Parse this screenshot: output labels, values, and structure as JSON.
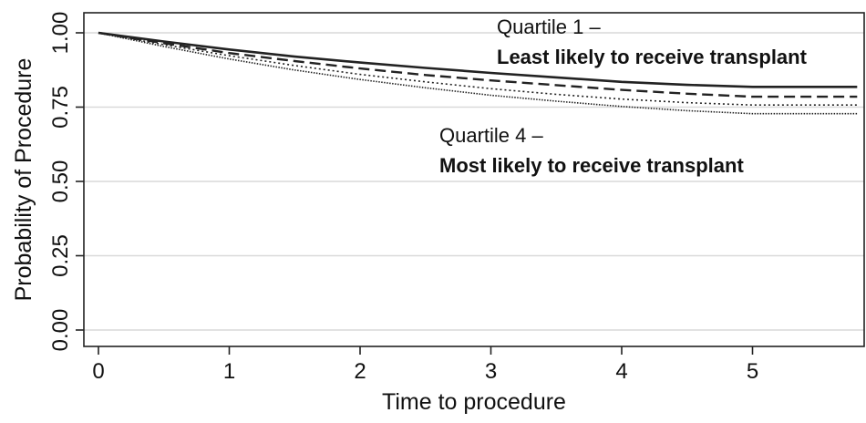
{
  "chart_data": {
    "type": "line",
    "title": "",
    "xlabel": "Time to procedure",
    "ylabel": "Probability of Procedure",
    "xlim": [
      0,
      5.85
    ],
    "ylim": [
      0,
      1.05
    ],
    "xticks": [
      0,
      1,
      2,
      3,
      4,
      5
    ],
    "xtick_labels": [
      "0",
      "1",
      "2",
      "3",
      "4",
      "5"
    ],
    "yticks": [
      0,
      0.25,
      0.5,
      0.75,
      1
    ],
    "ytick_labels": [
      "0.00",
      "0.25",
      "0.50",
      "0.75",
      "1.00"
    ],
    "grid": true,
    "series": [
      {
        "style": "solid",
        "x": [
          0,
          0.5,
          1,
          1.5,
          2,
          2.5,
          3,
          3.5,
          4,
          4.5,
          5,
          5.8
        ],
        "values": [
          1.0,
          0.971,
          0.944,
          0.92,
          0.9,
          0.882,
          0.865,
          0.85,
          0.835,
          0.825,
          0.818,
          0.818
        ]
      },
      {
        "style": "dashed",
        "x": [
          0,
          0.5,
          1,
          1.5,
          2,
          2.5,
          3,
          3.5,
          4,
          4.5,
          5,
          5.8
        ],
        "values": [
          1.0,
          0.965,
          0.932,
          0.905,
          0.88,
          0.858,
          0.84,
          0.824,
          0.808,
          0.795,
          0.785,
          0.785
        ]
      },
      {
        "style": "dotted",
        "x": [
          0,
          0.5,
          1,
          1.5,
          2,
          2.5,
          3,
          3.5,
          4,
          4.5,
          5,
          5.8
        ],
        "values": [
          1.0,
          0.96,
          0.923,
          0.89,
          0.86,
          0.835,
          0.812,
          0.793,
          0.777,
          0.765,
          0.757,
          0.757
        ]
      },
      {
        "style": "dotted-dense",
        "x": [
          0,
          0.5,
          1,
          1.5,
          2,
          2.5,
          3,
          3.5,
          4,
          4.5,
          5,
          5.8
        ],
        "values": [
          1.0,
          0.954,
          0.912,
          0.875,
          0.843,
          0.815,
          0.79,
          0.77,
          0.752,
          0.738,
          0.728,
          0.728
        ]
      }
    ],
    "annotations": [
      {
        "line1": "Quartile 1 –",
        "line2": "Least likely to receive transplant"
      },
      {
        "line1": "Quartile 4 –",
        "line2": "Most likely to receive transplant"
      }
    ],
    "colors": {
      "line": "#222222",
      "grid": "#d9d9d9",
      "frame": "#222222"
    }
  }
}
